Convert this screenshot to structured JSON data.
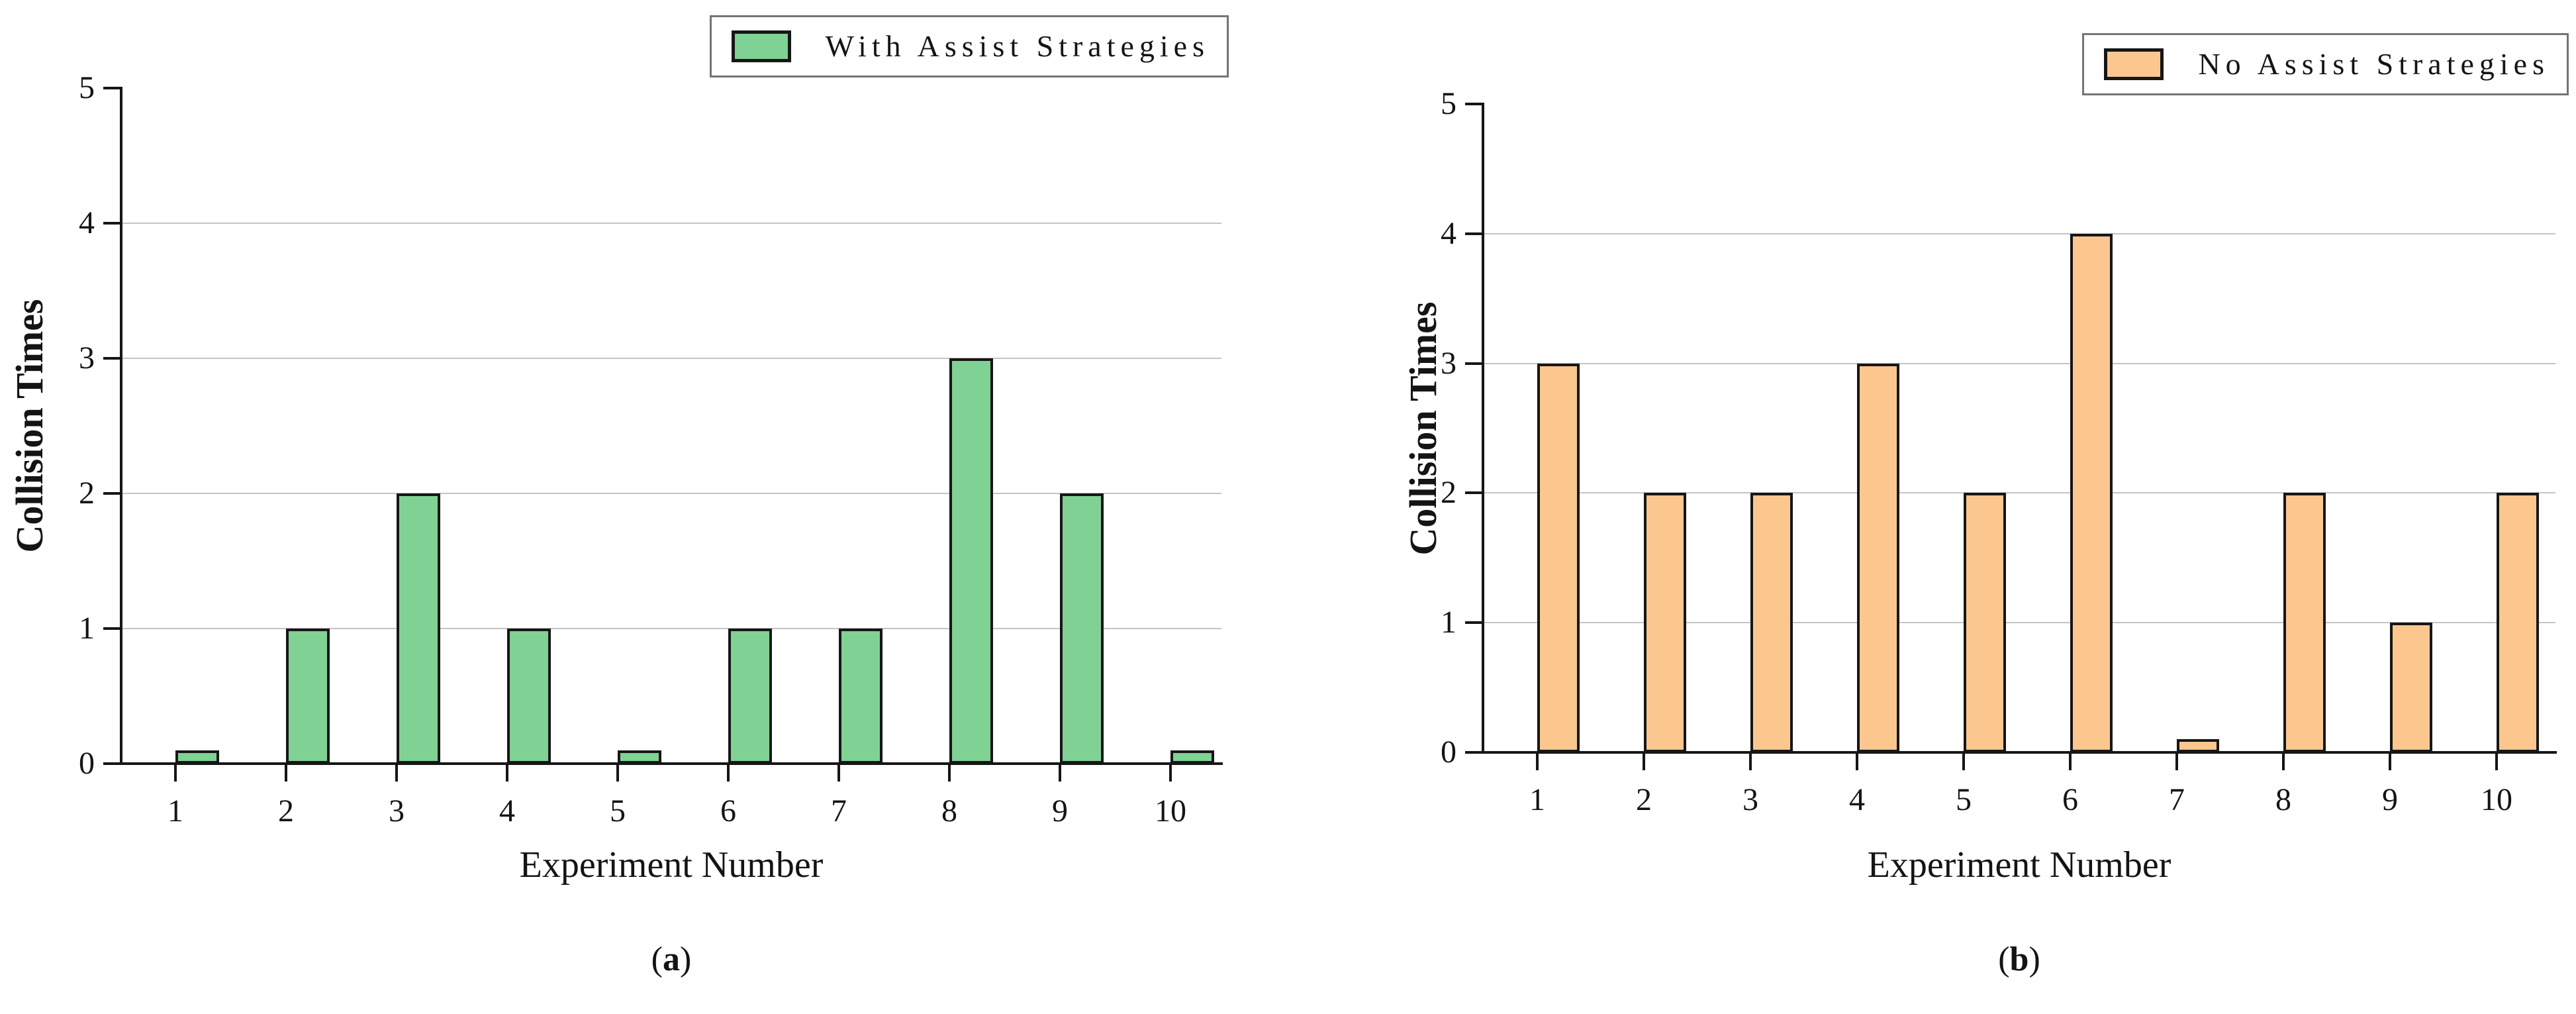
{
  "colors": {
    "background": "#ffffff",
    "axis": "#161616",
    "gridline": "#c4c4c4",
    "legend_border": "#747474",
    "green_fill": "#80d194",
    "orange_fill": "#fbc78f"
  },
  "chart_data": [
    {
      "type": "bar",
      "legend": "With Assist Strategies",
      "xlabel": "Experiment Number",
      "ylabel": "Collision Times",
      "caption": {
        "open": "(",
        "letter": "a",
        "close": ")"
      },
      "categories": [
        "1",
        "2",
        "3",
        "4",
        "5",
        "6",
        "7",
        "8",
        "9",
        "10"
      ],
      "values": [
        0.1,
        1,
        2,
        1,
        0.1,
        1,
        1,
        3,
        2,
        0.1
      ],
      "ylim": [
        0,
        5
      ],
      "yticks": [
        0,
        1,
        2,
        3,
        4,
        5
      ],
      "grid_values": [
        1,
        2,
        3,
        4
      ],
      "grid": true,
      "legend_position": "top-right",
      "bar_fill": "#80d194",
      "bar_edge": "#161616"
    },
    {
      "type": "bar",
      "legend": "No Assist Strategies",
      "xlabel": "Experiment Number",
      "ylabel": "Collision Times",
      "caption": {
        "open": "(",
        "letter": "b",
        "close": ")"
      },
      "categories": [
        "1",
        "2",
        "3",
        "4",
        "5",
        "6",
        "7",
        "8",
        "9",
        "10"
      ],
      "values": [
        3,
        2,
        2,
        3,
        2,
        4,
        0.1,
        2,
        1,
        2
      ],
      "ylim": [
        0,
        5
      ],
      "yticks": [
        0,
        1,
        2,
        3,
        4,
        5
      ],
      "grid_values": [
        1,
        2,
        3,
        4
      ],
      "grid": true,
      "legend_position": "top-right",
      "bar_fill": "#fbc78f",
      "bar_edge": "#161616"
    }
  ]
}
